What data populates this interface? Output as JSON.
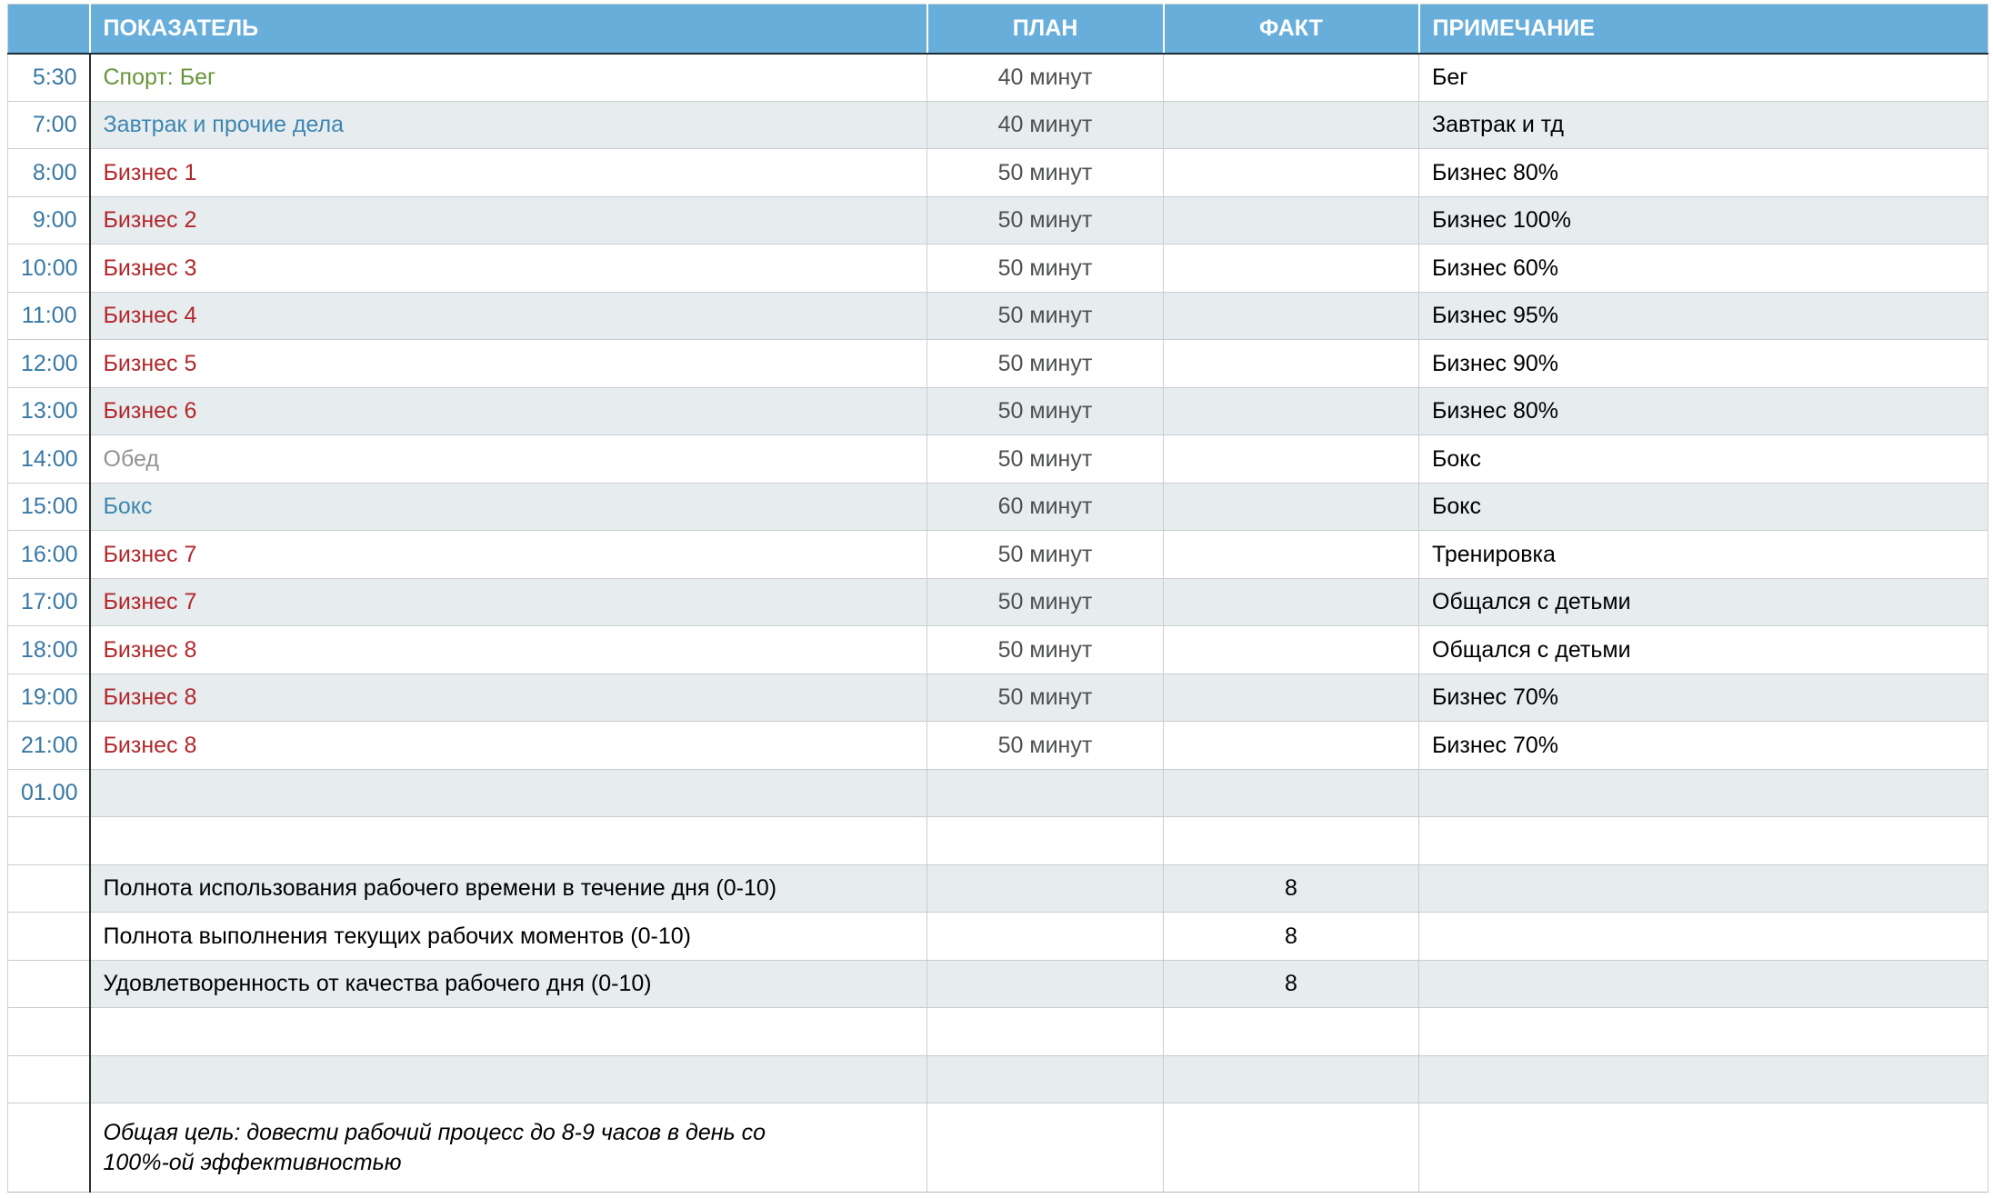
{
  "colors": {
    "header_bg": "#68AEDB",
    "header_text": "#FFFFFF",
    "stripe_bg": "#E7EDEF",
    "grid_line": "#C9CDD0",
    "dark_line": "#1F2D36",
    "col_divider_dark": "#2E2E2E",
    "time_text": "#3878A4",
    "sport_text": "#67953B",
    "routine_text": "#3E86B0",
    "business_text": "#B2272B",
    "muted_text": "#919396",
    "plan_text": "#4D4F51",
    "body_text": "#000000"
  },
  "table": {
    "columns": [
      {
        "label": ""
      },
      {
        "label": "ПОКАЗАТЕЛЬ"
      },
      {
        "label": "ПЛАН"
      },
      {
        "label": "ФАКТ"
      },
      {
        "label": "ПРИМЕЧАНИЕ"
      }
    ],
    "rows": [
      {
        "time": "5:30",
        "indicator": "Спорт: Бег",
        "style": "sport",
        "plan": "40 минут",
        "fact": "",
        "note": "Бег",
        "striped": false
      },
      {
        "time": "7:00",
        "indicator": "Завтрак и прочие дела",
        "style": "routine",
        "plan": "40 минут",
        "fact": "",
        "note": "Завтрак и тд",
        "striped": true
      },
      {
        "time": "8:00",
        "indicator": "Бизнес 1",
        "style": "business",
        "plan": "50 минут",
        "fact": "",
        "note": "Бизнес 80%",
        "striped": false
      },
      {
        "time": "9:00",
        "indicator": "Бизнес 2",
        "style": "business",
        "plan": "50 минут",
        "fact": "",
        "note": "Бизнес 100%",
        "striped": true
      },
      {
        "time": "10:00",
        "indicator": "Бизнес 3",
        "style": "business",
        "plan": "50 минут",
        "fact": "",
        "note": "Бизнес 60%",
        "striped": false
      },
      {
        "time": "11:00",
        "indicator": "Бизнес 4",
        "style": "business",
        "plan": "50 минут",
        "fact": "",
        "note": "Бизнес 95%",
        "striped": true
      },
      {
        "time": "12:00",
        "indicator": "Бизнес 5",
        "style": "business",
        "plan": "50 минут",
        "fact": "",
        "note": "Бизнес 90%",
        "striped": false
      },
      {
        "time": "13:00",
        "indicator": "Бизнес 6",
        "style": "business",
        "plan": "50 минут",
        "fact": "",
        "note": "Бизнес 80%",
        "striped": true
      },
      {
        "time": "14:00",
        "indicator": "Обед",
        "style": "muted",
        "plan": "50 минут",
        "fact": "",
        "note": "Бокс",
        "striped": false
      },
      {
        "time": "15:00",
        "indicator": "Бокс",
        "style": "routine",
        "plan": "60 минут",
        "fact": "",
        "note": "Бокс",
        "striped": true
      },
      {
        "time": "16:00",
        "indicator": "Бизнес 7",
        "style": "business",
        "plan": "50 минут",
        "fact": "",
        "note": "Тренировка",
        "striped": false
      },
      {
        "time": "17:00",
        "indicator": "Бизнес 7",
        "style": "business",
        "plan": "50 минут",
        "fact": "",
        "note": "Общался с детьми",
        "striped": true
      },
      {
        "time": "18:00",
        "indicator": "Бизнес 8",
        "style": "business",
        "plan": "50 минут",
        "fact": "",
        "note": "Общался с детьми",
        "striped": false
      },
      {
        "time": "19:00",
        "indicator": "Бизнес 8",
        "style": "business",
        "plan": "50 минут",
        "fact": "",
        "note": "Бизнес 70%",
        "striped": true
      },
      {
        "time": "21:00",
        "indicator": "Бизнес 8",
        "style": "business",
        "plan": "50 минут",
        "fact": "",
        "note": "Бизнес 70%",
        "striped": false
      },
      {
        "time": "01.00",
        "indicator": "",
        "style": "",
        "plan": "",
        "fact": "",
        "note": "",
        "striped": true
      },
      {
        "time": "",
        "indicator": "",
        "style": "",
        "plan": "",
        "fact": "",
        "note": "",
        "striped": false
      },
      {
        "time": "",
        "indicator": "Полнота использования рабочего времени в течение дня (0-10)",
        "style": "",
        "plan": "",
        "fact": "8",
        "note": "",
        "striped": true
      },
      {
        "time": "",
        "indicator": "Полнота выполнения текущих рабочих моментов (0-10)",
        "style": "",
        "plan": "",
        "fact": "8",
        "note": "",
        "striped": false
      },
      {
        "time": "",
        "indicator": "Удовлетворенность от качества рабочего дня (0-10)",
        "style": "",
        "plan": "",
        "fact": "8",
        "note": "",
        "striped": true
      },
      {
        "time": "",
        "indicator": "",
        "style": "",
        "plan": "",
        "fact": "",
        "note": "",
        "striped": false
      },
      {
        "time": "",
        "indicator": "",
        "style": "",
        "plan": "",
        "fact": "",
        "note": "",
        "striped": true
      },
      {
        "time": "",
        "indicator": "Общая цель: довести рабочий процесс до 8-9 часов в день со 100%-ой эффективностью",
        "style": "goal",
        "plan": "",
        "fact": "",
        "note": "",
        "striped": false,
        "tall": true
      }
    ]
  }
}
